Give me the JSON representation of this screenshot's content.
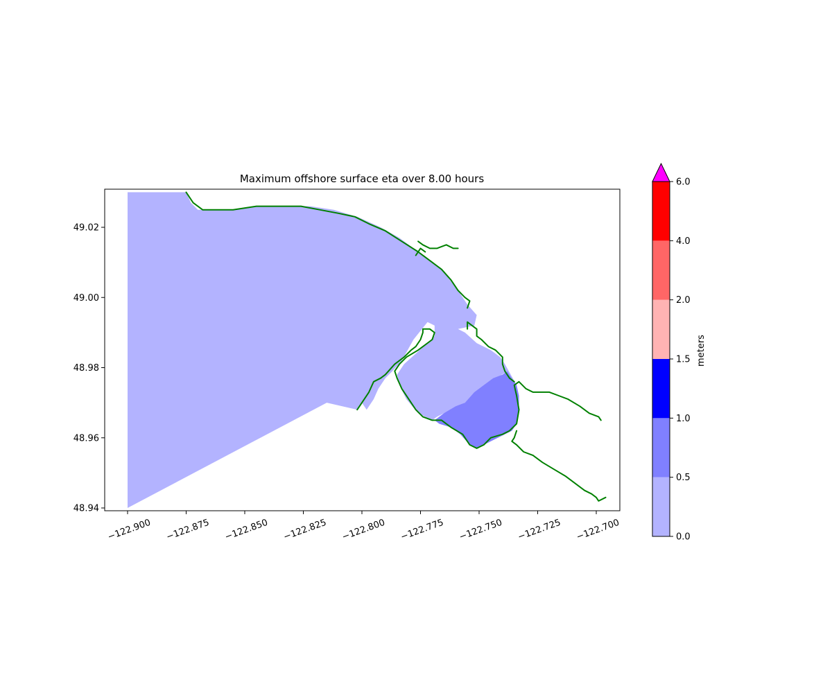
{
  "chart_data": {
    "type": "heatmap",
    "title": "Maximum offshore surface eta over 8.00 hours",
    "xlabel": "",
    "ylabel": "",
    "xlim": [
      -122.91,
      -122.6975
    ],
    "ylim": [
      48.939,
      49.031
    ],
    "x_ticks": [
      -122.9,
      -122.875,
      -122.85,
      -122.825,
      -122.8,
      -122.775,
      -122.75,
      -122.725,
      -122.7
    ],
    "x_tick_labels": [
      "−122.900",
      "−122.875",
      "−122.850",
      "−122.825",
      "−122.800",
      "−122.775",
      "−122.750",
      "−122.725",
      "−122.700"
    ],
    "y_ticks": [
      48.94,
      48.96,
      48.98,
      49.0,
      49.02
    ],
    "y_tick_labels": [
      "48.94",
      "48.96",
      "48.98",
      "49.00",
      "49.02"
    ],
    "grid": false,
    "regions": [
      {
        "level_range": [
          0.0,
          0.5
        ],
        "color": "#b3b3ff",
        "polygon": [
          [
            -122.9,
            49.03
          ],
          [
            -122.875,
            49.03
          ],
          [
            -122.873,
            49.027
          ],
          [
            -122.87,
            49.025
          ],
          [
            -122.864,
            49.025
          ],
          [
            -122.855,
            49.025
          ],
          [
            -122.843,
            49.026
          ],
          [
            -122.83,
            49.026
          ],
          [
            -122.822,
            49.026
          ],
          [
            -122.812,
            49.025
          ],
          [
            -122.802,
            49.023
          ],
          [
            -122.792,
            49.02
          ],
          [
            -122.784,
            49.017
          ],
          [
            -122.776,
            49.013
          ],
          [
            -122.77,
            49.01
          ],
          [
            -122.766,
            49.008
          ],
          [
            -122.759,
            49.002
          ],
          [
            -122.756,
            48.999
          ],
          [
            -122.755,
            48.998
          ],
          [
            -122.751,
            48.995
          ],
          [
            -122.752,
            48.992
          ],
          [
            -122.759,
            48.991
          ],
          [
            -122.756,
            48.99
          ],
          [
            -122.751,
            48.987
          ],
          [
            -122.745,
            48.985
          ],
          [
            -122.741,
            48.983
          ],
          [
            -122.739,
            48.981
          ],
          [
            -122.734,
            48.975
          ],
          [
            -122.738,
            48.979
          ],
          [
            -122.745,
            48.976
          ],
          [
            -122.752,
            48.972
          ],
          [
            -122.756,
            48.97
          ],
          [
            -122.761,
            48.968
          ],
          [
            -122.765,
            48.967
          ],
          [
            -122.768,
            48.966
          ],
          [
            -122.77,
            48.965
          ],
          [
            -122.776,
            48.967
          ],
          [
            -122.781,
            48.971
          ],
          [
            -122.784,
            48.975
          ],
          [
            -122.785,
            48.978
          ],
          [
            -122.782,
            48.981
          ],
          [
            -122.777,
            48.984
          ],
          [
            -122.772,
            48.987
          ],
          [
            -122.769,
            48.989
          ],
          [
            -122.769,
            48.992
          ],
          [
            -122.772,
            48.993
          ],
          [
            -122.778,
            48.988
          ],
          [
            -122.783,
            48.982
          ],
          [
            -122.787,
            48.979
          ],
          [
            -122.79,
            48.977
          ],
          [
            -122.793,
            48.974
          ],
          [
            -122.795,
            48.971
          ],
          [
            -122.798,
            48.968
          ],
          [
            -122.8,
            48.97
          ],
          [
            -122.802,
            48.968
          ],
          [
            -122.815,
            48.97
          ],
          [
            -122.9,
            48.94
          ]
        ]
      },
      {
        "level_range": [
          0.5,
          1.0
        ],
        "color": "#8080ff",
        "polygon": [
          [
            -122.769,
            48.965
          ],
          [
            -122.765,
            48.967
          ],
          [
            -122.76,
            48.969
          ],
          [
            -122.756,
            48.97
          ],
          [
            -122.752,
            48.973
          ],
          [
            -122.748,
            48.975
          ],
          [
            -122.744,
            48.977
          ],
          [
            -122.74,
            48.978
          ],
          [
            -122.738,
            48.979
          ],
          [
            -122.736,
            48.977
          ],
          [
            -122.734,
            48.975
          ],
          [
            -122.733,
            48.972
          ],
          [
            -122.733,
            48.968
          ],
          [
            -122.734,
            48.964
          ],
          [
            -122.736,
            48.962
          ],
          [
            -122.742,
            48.96
          ],
          [
            -122.748,
            48.958
          ],
          [
            -122.751,
            48.957
          ],
          [
            -122.754,
            48.958
          ],
          [
            -122.758,
            48.961
          ],
          [
            -122.762,
            48.963
          ],
          [
            -122.767,
            48.964
          ]
        ]
      }
    ],
    "coastlines": [
      [
        [
          -122.875,
          49.03
        ],
        [
          -122.872,
          49.027
        ],
        [
          -122.868,
          49.025
        ],
        [
          -122.862,
          49.025
        ],
        [
          -122.855,
          49.025
        ],
        [
          -122.845,
          49.026
        ],
        [
          -122.836,
          49.026
        ],
        [
          -122.826,
          49.026
        ],
        [
          -122.818,
          49.025
        ],
        [
          -122.81,
          49.024
        ],
        [
          -122.803,
          49.023
        ],
        [
          -122.797,
          49.021
        ],
        [
          -122.79,
          49.019
        ],
        [
          -122.783,
          49.016
        ],
        [
          -122.776,
          49.013
        ],
        [
          -122.77,
          49.01
        ],
        [
          -122.766,
          49.008
        ],
        [
          -122.762,
          49.005
        ],
        [
          -122.759,
          49.002
        ],
        [
          -122.756,
          49.0
        ],
        [
          -122.754,
          48.999
        ],
        [
          -122.755,
          48.997
        ]
      ],
      [
        [
          -122.802,
          48.968
        ],
        [
          -122.8,
          48.97
        ],
        [
          -122.797,
          48.973
        ],
        [
          -122.795,
          48.976
        ],
        [
          -122.792,
          48.977
        ],
        [
          -122.79,
          48.978
        ],
        [
          -122.786,
          48.981
        ],
        [
          -122.782,
          48.983
        ],
        [
          -122.779,
          48.985
        ],
        [
          -122.777,
          48.986
        ],
        [
          -122.775,
          48.988
        ],
        [
          -122.774,
          48.99
        ],
        [
          -122.774,
          48.991
        ],
        [
          -122.771,
          48.991
        ],
        [
          -122.769,
          48.99
        ],
        [
          -122.77,
          48.988
        ],
        [
          -122.776,
          48.985
        ],
        [
          -122.781,
          48.983
        ],
        [
          -122.784,
          48.981
        ],
        [
          -122.786,
          48.979
        ],
        [
          -122.785,
          48.977
        ],
        [
          -122.783,
          48.974
        ],
        [
          -122.78,
          48.971
        ],
        [
          -122.777,
          48.968
        ],
        [
          -122.774,
          48.966
        ],
        [
          -122.77,
          48.965
        ],
        [
          -122.766,
          48.965
        ],
        [
          -122.762,
          48.963
        ],
        [
          -122.757,
          48.961
        ],
        [
          -122.754,
          48.958
        ],
        [
          -122.751,
          48.957
        ],
        [
          -122.748,
          48.958
        ],
        [
          -122.745,
          48.96
        ],
        [
          -122.74,
          48.961
        ],
        [
          -122.737,
          48.962
        ],
        [
          -122.734,
          48.964
        ],
        [
          -122.733,
          48.968
        ],
        [
          -122.734,
          48.972
        ],
        [
          -122.735,
          48.975
        ],
        [
          -122.733,
          48.976
        ],
        [
          -122.73,
          48.974
        ],
        [
          -122.727,
          48.973
        ],
        [
          -122.724,
          48.973
        ],
        [
          -122.72,
          48.973
        ],
        [
          -122.716,
          48.972
        ],
        [
          -122.712,
          48.971
        ],
        [
          -122.707,
          48.969
        ],
        [
          -122.703,
          48.967
        ],
        [
          -122.699,
          48.966
        ],
        [
          -122.698,
          48.965
        ]
      ],
      [
        [
          -122.735,
          48.976
        ],
        [
          -122.737,
          48.977
        ],
        [
          -122.739,
          48.979
        ],
        [
          -122.74,
          48.981
        ],
        [
          -122.74,
          48.983
        ],
        [
          -122.743,
          48.985
        ],
        [
          -122.746,
          48.986
        ],
        [
          -122.749,
          48.988
        ],
        [
          -122.751,
          48.989
        ],
        [
          -122.751,
          48.991
        ],
        [
          -122.753,
          48.992
        ],
        [
          -122.755,
          48.993
        ],
        [
          -122.755,
          48.991
        ]
      ],
      [
        [
          -122.734,
          48.962
        ],
        [
          -122.735,
          48.96
        ],
        [
          -122.736,
          48.959
        ],
        [
          -122.734,
          48.958
        ],
        [
          -122.731,
          48.956
        ],
        [
          -122.727,
          48.955
        ],
        [
          -122.723,
          48.953
        ],
        [
          -122.718,
          48.951
        ],
        [
          -122.713,
          48.949
        ],
        [
          -122.709,
          48.947
        ],
        [
          -122.705,
          48.945
        ],
        [
          -122.702,
          48.944
        ],
        [
          -122.7,
          48.943
        ],
        [
          -122.699,
          48.942
        ],
        [
          -122.696,
          48.943
        ]
      ],
      [
        [
          -122.776,
          49.016
        ],
        [
          -122.774,
          49.015
        ],
        [
          -122.771,
          49.014
        ],
        [
          -122.768,
          49.014
        ],
        [
          -122.764,
          49.015
        ],
        [
          -122.761,
          49.014
        ],
        [
          -122.759,
          49.014
        ]
      ],
      [
        [
          -122.777,
          49.012
        ],
        [
          -122.775,
          49.014
        ],
        [
          -122.773,
          49.013
        ]
      ]
    ],
    "colorbar": {
      "label": "meters",
      "boundaries": [
        0.0,
        0.5,
        1.0,
        1.5,
        2.0,
        4.0,
        6.0
      ],
      "tick_labels": [
        "0.0",
        "0.5",
        "1.0",
        "1.5",
        "2.0",
        "4.0",
        "6.0"
      ],
      "colors": [
        "#b3b3ff",
        "#8080ff",
        "#0000ff",
        "#ffb3b3",
        "#ff6666",
        "#ff0000"
      ],
      "extend_max_color": "#ff00ff"
    },
    "coastline_color": "#008000"
  }
}
